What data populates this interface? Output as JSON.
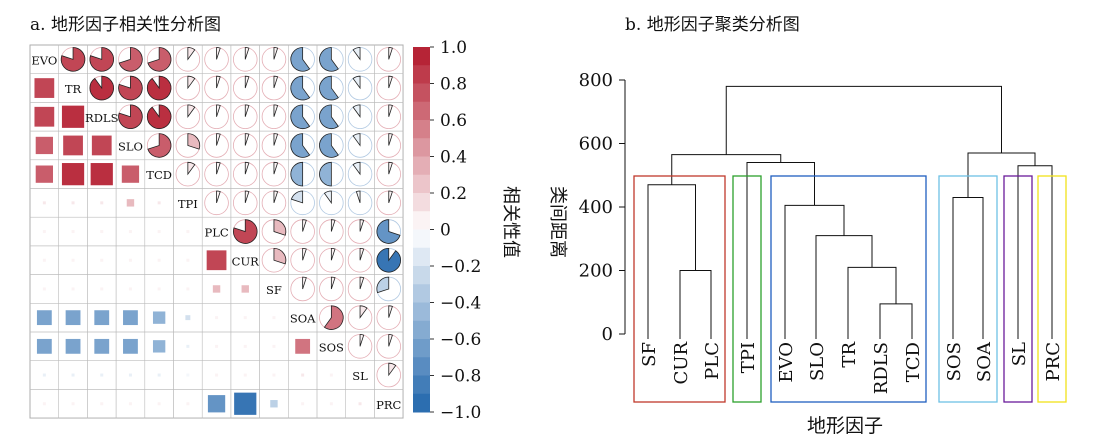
{
  "panel_a": {
    "title": "a. 地形因子相关性分析图",
    "colorbar_label": "相关性值",
    "colorbar_ticks": [
      "1.0",
      "0.8",
      "0.6",
      "0.4",
      "0.2",
      "0",
      "−0.2",
      "−0.4",
      "−0.6",
      "−0.8",
      "−1.0"
    ]
  },
  "panel_b": {
    "title": "b. 地形因子聚类分析图",
    "ylabel": "类间距离",
    "xlabel": "地形因子",
    "y_ticks": [
      "800",
      "600",
      "400",
      "200",
      "0"
    ]
  },
  "colors": {
    "positive": "#b2182b",
    "negative": "#2166ac",
    "box_colors": [
      "#c0392b",
      "#2ca02c",
      "#1f5fbf",
      "#6ec1e4",
      "#6a1b9a",
      "#f2e21a"
    ]
  },
  "chart_data": [
    {
      "type": "heatmap",
      "title": "a. 地形因子相关性分析图",
      "variables": [
        "EVO",
        "TR",
        "RDLS",
        "SLO",
        "TCD",
        "TPI",
        "PLC",
        "CUR",
        "SF",
        "SOA",
        "SOS",
        "SL",
        "PRC"
      ],
      "lower_triangle": "squares",
      "upper_triangle": "pies",
      "color_range": [
        -1.0,
        1.0
      ],
      "colorbar_label": "相关性值",
      "matrix": [
        [
          1.0,
          0.8,
          0.8,
          0.7,
          0.7,
          0.1,
          0.05,
          0.05,
          0.05,
          -0.6,
          -0.6,
          -0.1,
          0.05
        ],
        [
          0.8,
          1.0,
          0.9,
          0.8,
          0.9,
          0.1,
          0.05,
          0.05,
          0.05,
          -0.6,
          -0.6,
          -0.1,
          0.05
        ],
        [
          0.8,
          0.9,
          1.0,
          0.8,
          0.9,
          0.1,
          0.05,
          0.05,
          0.05,
          -0.6,
          -0.6,
          -0.1,
          0.05
        ],
        [
          0.7,
          0.8,
          0.8,
          1.0,
          0.7,
          0.3,
          0.05,
          0.05,
          0.05,
          -0.6,
          -0.6,
          -0.1,
          0.05
        ],
        [
          0.7,
          0.9,
          0.9,
          0.7,
          1.0,
          0.1,
          0.05,
          0.05,
          0.05,
          -0.5,
          -0.5,
          -0.1,
          0.05
        ],
        [
          0.1,
          0.1,
          0.1,
          0.3,
          0.1,
          1.0,
          0.05,
          0.05,
          0.05,
          -0.2,
          -0.1,
          -0.05,
          0.05
        ],
        [
          0.05,
          0.05,
          0.05,
          0.05,
          0.05,
          0.05,
          1.0,
          0.8,
          0.3,
          0.05,
          0.05,
          0.05,
          -0.7
        ],
        [
          0.05,
          0.05,
          0.05,
          0.05,
          0.05,
          0.05,
          0.8,
          1.0,
          0.3,
          0.05,
          0.05,
          0.05,
          -0.9
        ],
        [
          0.05,
          0.05,
          0.05,
          0.05,
          0.05,
          0.05,
          0.3,
          0.3,
          1.0,
          0.05,
          0.05,
          0.05,
          -0.3
        ],
        [
          -0.6,
          -0.6,
          -0.6,
          -0.6,
          -0.5,
          -0.2,
          0.05,
          0.05,
          0.05,
          1.0,
          0.6,
          0.1,
          0.05
        ],
        [
          -0.6,
          -0.6,
          -0.6,
          -0.6,
          -0.5,
          -0.1,
          0.05,
          0.05,
          0.05,
          0.6,
          1.0,
          0.05,
          0.05
        ],
        [
          -0.1,
          -0.1,
          -0.1,
          -0.1,
          -0.1,
          -0.05,
          0.05,
          0.05,
          0.05,
          0.1,
          0.05,
          1.0,
          0.1
        ],
        [
          0.05,
          0.05,
          0.05,
          0.05,
          0.05,
          0.05,
          -0.7,
          -0.9,
          -0.3,
          0.05,
          0.05,
          0.1,
          1.0
        ]
      ]
    },
    {
      "type": "dendrogram",
      "title": "b. 地形因子聚类分析图",
      "xlabel": "地形因子",
      "ylabel": "类间距离",
      "ylim": [
        0,
        800
      ],
      "leaves": [
        "SF",
        "CUR",
        "PLC",
        "TPI",
        "EVO",
        "SLO",
        "TR",
        "RDLS",
        "TCD",
        "SOS",
        "SOA",
        "SL",
        "PRC"
      ],
      "merges": [
        {
          "a": "RDLS",
          "b": "TCD",
          "height": 95
        },
        {
          "a": "CUR",
          "b": "PLC",
          "height": 200
        },
        {
          "a": "TR",
          "b": "RDLS+TCD",
          "height": 210
        },
        {
          "a": "SLO",
          "b": "TR+RDLS+TCD",
          "height": 310
        },
        {
          "a": "EVO",
          "b": "SLO+TR+RDLS+TCD",
          "height": 405
        },
        {
          "a": "SOS",
          "b": "SOA",
          "height": 430
        },
        {
          "a": "SF",
          "b": "CUR+PLC",
          "height": 470
        },
        {
          "a": "SL",
          "b": "PRC",
          "height": 530
        },
        {
          "a": "TPI",
          "b": "EVO-group",
          "height": 540
        },
        {
          "a": "SOS+SOA",
          "b": "SL+PRC",
          "height": 570
        },
        {
          "a": "SF-group",
          "b": "TPI-group",
          "height": 565
        },
        {
          "a": "left",
          "b": "right",
          "height": 780
        }
      ],
      "clusters": [
        [
          "SF",
          "CUR",
          "PLC"
        ],
        [
          "TPI"
        ],
        [
          "EVO",
          "SLO",
          "TR",
          "RDLS",
          "TCD"
        ],
        [
          "SOS",
          "SOA"
        ],
        [
          "SL"
        ],
        [
          "PRC"
        ]
      ]
    }
  ]
}
